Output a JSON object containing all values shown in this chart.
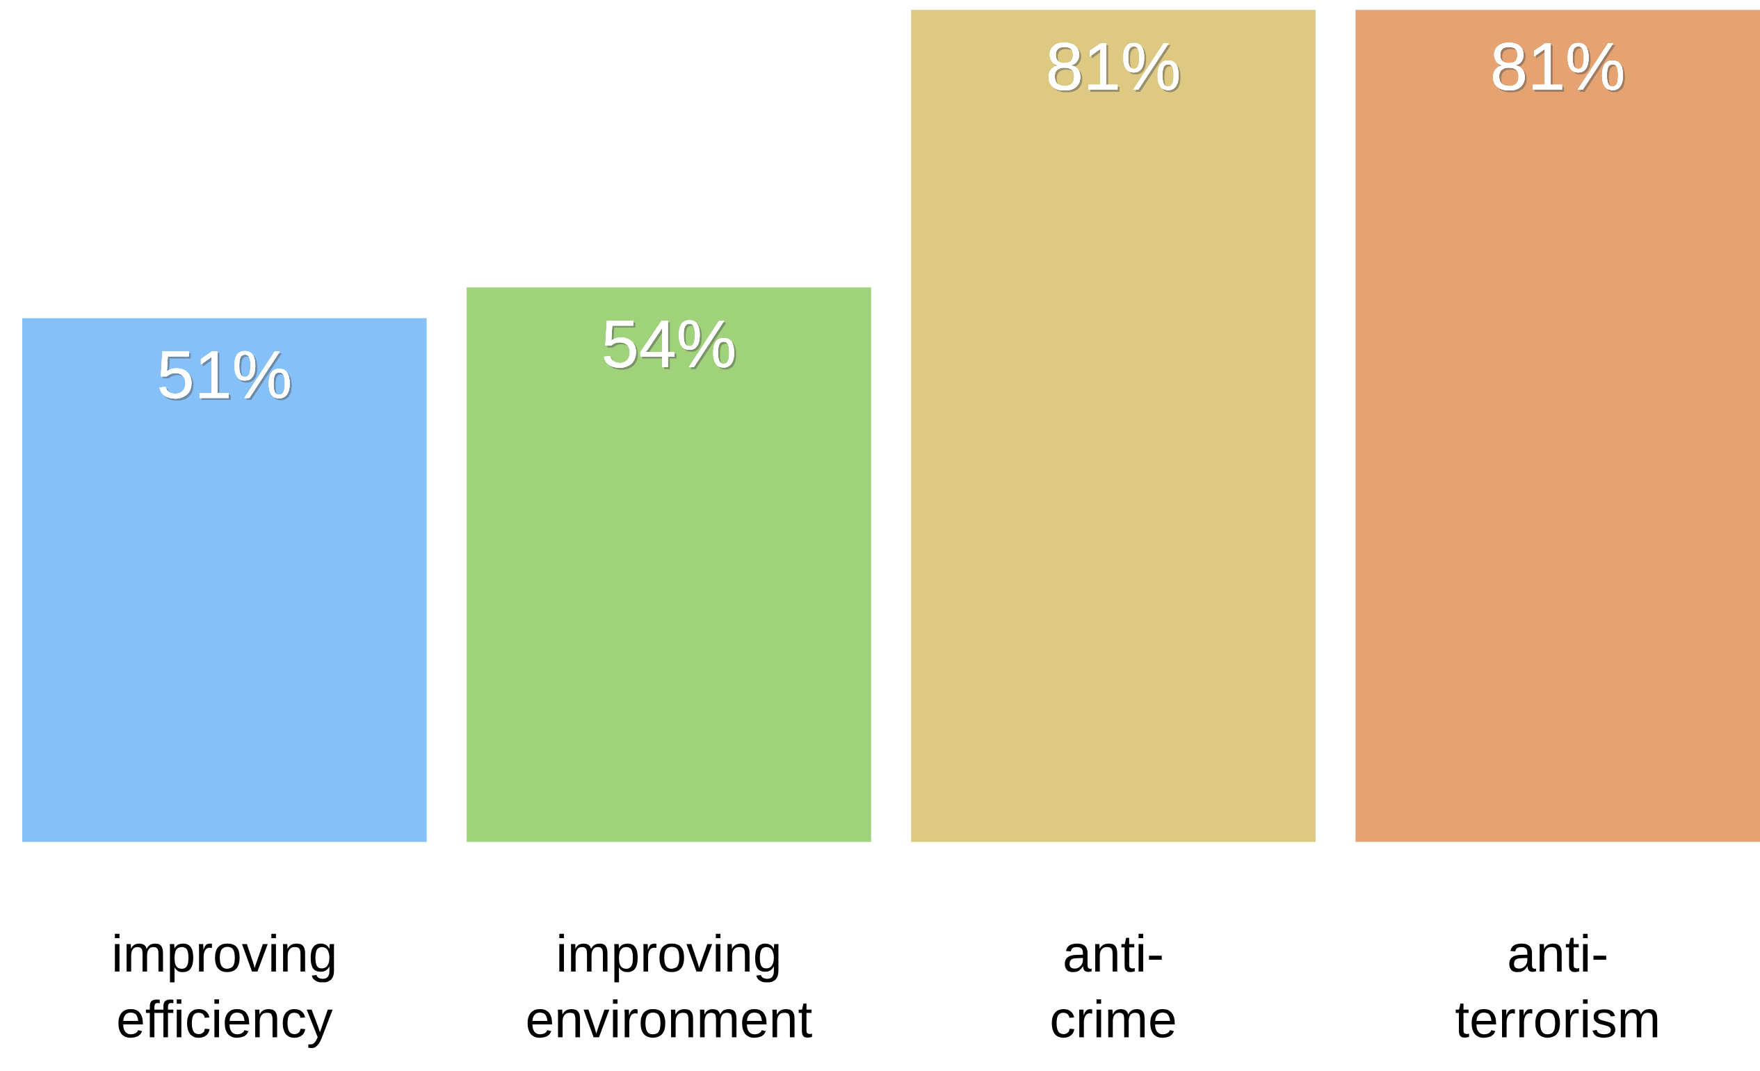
{
  "chart_data": {
    "type": "bar",
    "categories": [
      "improving\nefficiency",
      "improving\nenvironment",
      "anti-\ncrime",
      "anti-\nterrorism"
    ],
    "values": [
      51,
      54,
      81,
      81
    ],
    "colors": [
      "#85c1f8",
      "#9fd27b",
      "#ddc981",
      "#e4a370"
    ],
    "value_labels": [
      "51%",
      "54%",
      "81%",
      "81%"
    ],
    "grid": false,
    "legend": false
  }
}
